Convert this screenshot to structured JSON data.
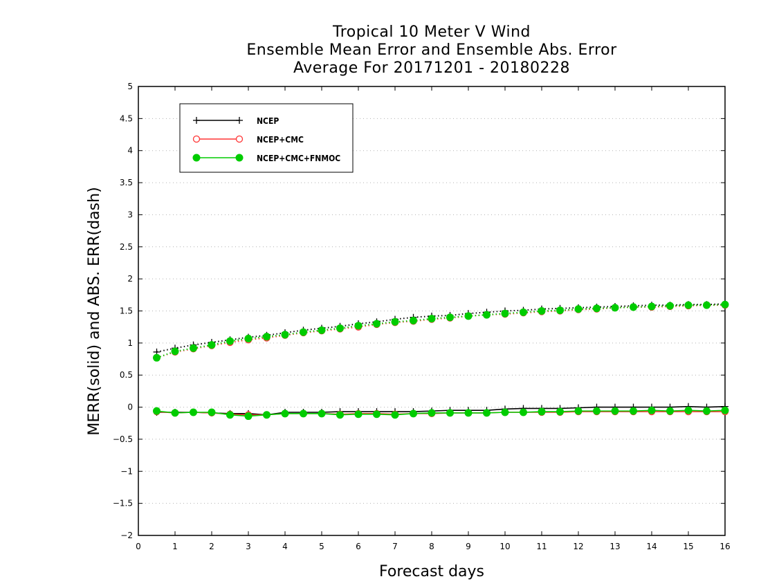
{
  "chart_data": {
    "type": "line",
    "title": "Tropical 10 Meter V Wind",
    "subtitle": "Ensemble Mean Error and Ensemble Abs. Error",
    "subtitle2": "Average For 20171201 - 20180228",
    "xlabel": "Forecast days",
    "ylabel": "MERR(solid) and ABS. ERR(dash)",
    "xlim": [
      0,
      16
    ],
    "ylim": [
      -2,
      5
    ],
    "xticks": [
      "0",
      "1",
      "2",
      "3",
      "4",
      "5",
      "6",
      "7",
      "8",
      "9",
      "10",
      "11",
      "12",
      "13",
      "14",
      "15",
      "16"
    ],
    "yticks": [
      "5",
      "4.5",
      "4",
      "3.5",
      "3",
      "2.5",
      "2",
      "1.5",
      "1",
      "0.5",
      "0",
      "−0.5",
      "−1",
      "−1.5",
      "−2"
    ],
    "grid": true,
    "legend_position": "top-left",
    "x": [
      0.5,
      1,
      1.5,
      2,
      2.5,
      3,
      3.5,
      4,
      4.5,
      5,
      5.5,
      6,
      6.5,
      7,
      7.5,
      8,
      8.5,
      9,
      9.5,
      10,
      10.5,
      11,
      11.5,
      12,
      12.5,
      13,
      13.5,
      14,
      14.5,
      15,
      15.5,
      16
    ],
    "series": [
      {
        "name": "NCEP",
        "color": "#000000",
        "marker": "plus",
        "merr": [
          -0.08,
          -0.08,
          -0.08,
          -0.09,
          -0.1,
          -0.1,
          -0.12,
          -0.08,
          -0.08,
          -0.08,
          -0.07,
          -0.07,
          -0.07,
          -0.07,
          -0.07,
          -0.06,
          -0.05,
          -0.05,
          -0.05,
          -0.03,
          -0.02,
          -0.02,
          -0.02,
          -0.01,
          0.0,
          0.0,
          0.0,
          0.0,
          0.0,
          0.01,
          0.0,
          0.01
        ],
        "abserr": [
          0.86,
          0.92,
          0.97,
          1.01,
          1.05,
          1.09,
          1.12,
          1.16,
          1.2,
          1.23,
          1.26,
          1.3,
          1.33,
          1.37,
          1.4,
          1.42,
          1.43,
          1.46,
          1.48,
          1.5,
          1.51,
          1.53,
          1.54,
          1.55,
          1.56,
          1.57,
          1.58,
          1.59,
          1.59,
          1.6,
          1.6,
          1.61
        ]
      },
      {
        "name": "NCEP+CMC",
        "color": "#ff3333",
        "marker": "open-circle",
        "merr": [
          -0.07,
          -0.09,
          -0.08,
          -0.09,
          -0.11,
          -0.12,
          -0.12,
          -0.1,
          -0.1,
          -0.1,
          -0.11,
          -0.1,
          -0.1,
          -0.11,
          -0.1,
          -0.1,
          -0.09,
          -0.09,
          -0.09,
          -0.08,
          -0.08,
          -0.08,
          -0.08,
          -0.07,
          -0.07,
          -0.07,
          -0.07,
          -0.07,
          -0.07,
          -0.07,
          -0.07,
          -0.07
        ],
        "abserr": [
          0.77,
          0.86,
          0.91,
          0.96,
          1.01,
          1.05,
          1.08,
          1.12,
          1.16,
          1.19,
          1.22,
          1.25,
          1.29,
          1.32,
          1.34,
          1.37,
          1.39,
          1.42,
          1.44,
          1.45,
          1.47,
          1.49,
          1.5,
          1.52,
          1.53,
          1.55,
          1.56,
          1.56,
          1.57,
          1.58,
          1.59,
          1.59
        ]
      },
      {
        "name": "NCEP+CMC+FNMOC",
        "color": "#00cc00",
        "marker": "filled-circle",
        "merr": [
          -0.06,
          -0.09,
          -0.08,
          -0.08,
          -0.12,
          -0.14,
          -0.12,
          -0.1,
          -0.1,
          -0.1,
          -0.12,
          -0.11,
          -0.11,
          -0.12,
          -0.1,
          -0.09,
          -0.09,
          -0.09,
          -0.09,
          -0.08,
          -0.08,
          -0.07,
          -0.07,
          -0.06,
          -0.06,
          -0.06,
          -0.06,
          -0.05,
          -0.06,
          -0.05,
          -0.06,
          -0.05
        ],
        "abserr": [
          0.77,
          0.87,
          0.92,
          0.97,
          1.03,
          1.07,
          1.1,
          1.13,
          1.17,
          1.2,
          1.23,
          1.27,
          1.3,
          1.33,
          1.35,
          1.38,
          1.4,
          1.42,
          1.44,
          1.46,
          1.48,
          1.5,
          1.51,
          1.53,
          1.54,
          1.55,
          1.56,
          1.57,
          1.58,
          1.59,
          1.59,
          1.6
        ]
      }
    ]
  }
}
